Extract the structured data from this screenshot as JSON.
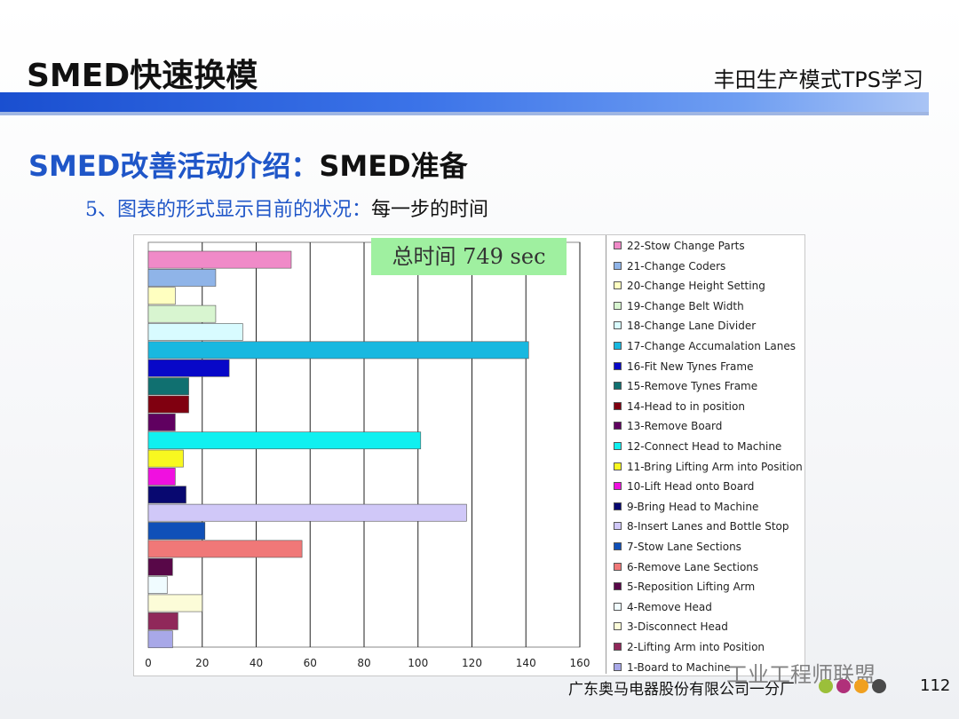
{
  "header": {
    "main_title": "SMED快速换模",
    "right_title": "丰田生产模式TPS学习"
  },
  "section": {
    "title_blue": "SMED改善活动介绍：",
    "title_black": "SMED准备",
    "subtitle_blue": "5、图表的形式显示目前的状况：",
    "subtitle_black": "每一步的时间"
  },
  "total_time": "总时间 749 sec",
  "footer": {
    "company": "广东奥马电器股份有限公司一分厂",
    "watermark": "工业工程师联盟",
    "page_number": "112"
  },
  "chart_data": {
    "type": "bar",
    "orientation": "horizontal",
    "xlim": [
      0,
      160
    ],
    "x_ticks": [
      "0",
      "20",
      "40",
      "60",
      "80",
      "100",
      "120",
      "140",
      "160"
    ],
    "grid": true,
    "legend_position": "right",
    "categories": [
      "22-Stow  Change Parts",
      "21-Change Coders",
      "20-Change Height Setting",
      "19-Change Belt Width",
      "18-Change Lane Divider",
      "17-Change Accumalation Lanes",
      "16-Fit New  Tynes Frame",
      "15-Remove Tynes Frame",
      "14-Head to in position",
      "13-Remove Board",
      "12-Connect Head to Machine",
      "11-Bring Lifting Arm into Position",
      "10-Lift Head onto Board",
      "9-Bring Head to Machine",
      "8-Insert Lanes and Bottle Stop",
      "7-Stow  Lane Sections",
      "6-Remove Lane Sections",
      "5-Reposition Lifting Arm",
      "4-Remove Head",
      "3-Disconnect Head",
      "2-Lifting Arm into Position",
      "1-Board to Machine"
    ],
    "values": [
      53,
      25,
      10,
      25,
      35,
      141,
      30,
      15,
      15,
      10,
      101,
      13,
      10,
      14,
      118,
      21,
      57,
      9,
      7,
      20,
      11,
      9
    ],
    "colors": [
      "#f08ac8",
      "#8fb4e8",
      "#ffffc0",
      "#d8f5d0",
      "#d8fbff",
      "#18b8e0",
      "#0808c8",
      "#107070",
      "#800010",
      "#600060",
      "#10f0f0",
      "#f8f820",
      "#f010e0",
      "#080870",
      "#d0c8f8",
      "#1050b8",
      "#f07878",
      "#580848",
      "#f0fcff",
      "#fcfcd8",
      "#90285a",
      "#a8a8e8"
    ]
  }
}
